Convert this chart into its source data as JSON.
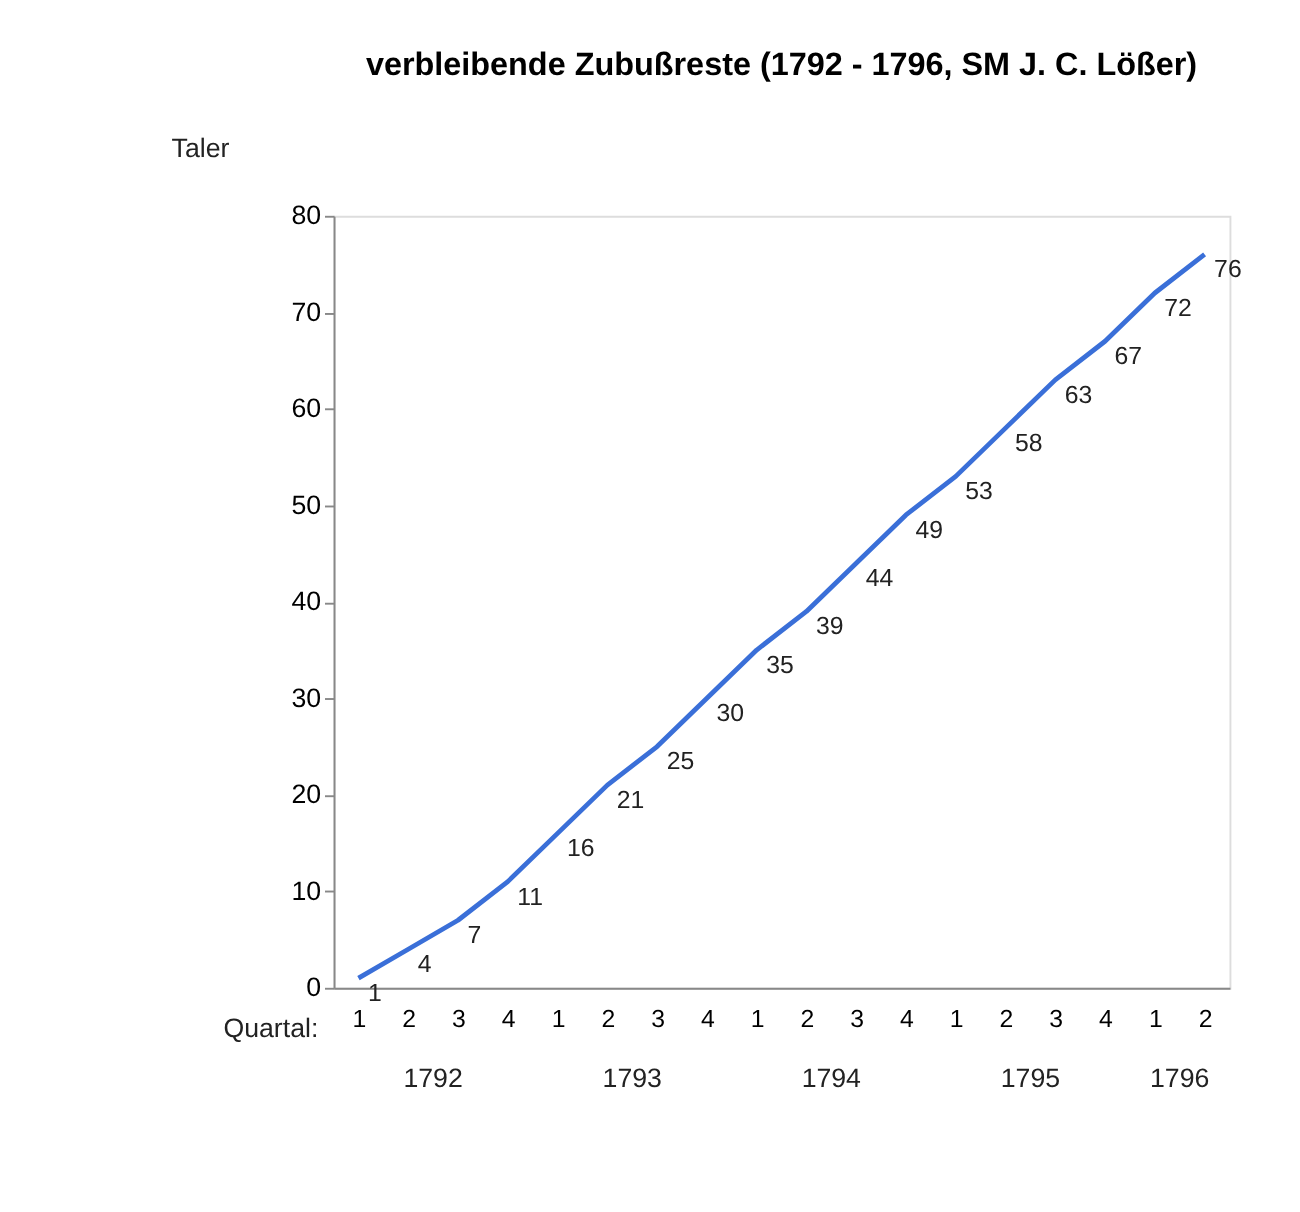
{
  "chart_data": {
    "type": "line",
    "title": "verbleibende Zubußreste (1792 - 1796, SM  J. C. Lößer)",
    "ylabel": "Taler",
    "categories": [
      "1",
      "2",
      "3",
      "4",
      "1",
      "2",
      "3",
      "4",
      "1",
      "2",
      "3",
      "4",
      "1",
      "2",
      "3",
      "4",
      "1",
      "2"
    ],
    "series": [
      {
        "color": "#3a6fd8",
        "values": [
          1,
          4,
          7,
          11,
          16,
          21,
          25,
          30,
          35,
          39,
          44,
          49,
          53,
          58,
          63,
          67,
          72,
          76
        ]
      }
    ],
    "ylim": [
      0,
      80
    ],
    "yticks": [
      0,
      10,
      20,
      30,
      40,
      50,
      60,
      70,
      80
    ],
    "grid": false,
    "data_labels": true,
    "marker": "none",
    "line_style": "solid",
    "annotations": [
      "Quartal:",
      "1792",
      "1793",
      "1794",
      "1795",
      "1796"
    ]
  }
}
